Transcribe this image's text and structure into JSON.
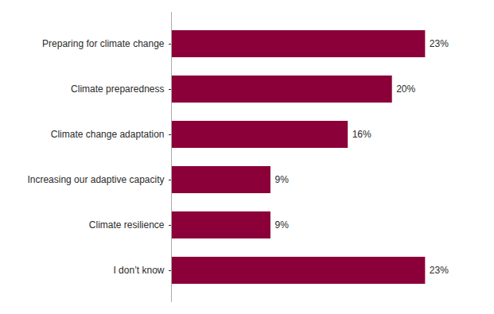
{
  "chart_data": {
    "type": "bar",
    "orientation": "horizontal",
    "categories": [
      "I don’t know",
      "Climate resilience",
      "Increasing our adaptive capacity",
      "Climate change adaptation",
      "Climate preparedness",
      "Preparing for climate change"
    ],
    "values": [
      23,
      9,
      9,
      16,
      20,
      23
    ],
    "value_labels": [
      "23%",
      "9%",
      "9%",
      "16%",
      "20%",
      "23%"
    ],
    "color": "#8B0038",
    "xlim": [
      0,
      26
    ],
    "data_labels": true,
    "tick_labels": "y",
    "grid": false
  }
}
